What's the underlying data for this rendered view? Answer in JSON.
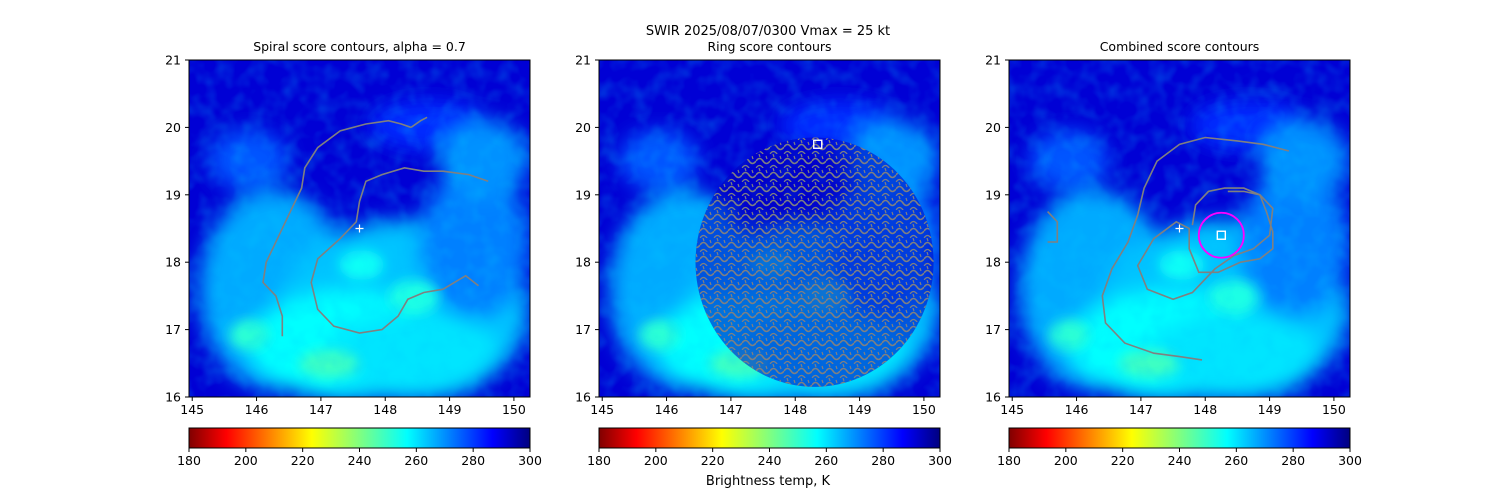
{
  "suptitle_line1": "SWIR  2025/08/07/0300    Vmax = 25 kt",
  "colorbar_label": "Brightness temp, K",
  "chart_data": [
    {
      "type": "heatmap",
      "title": "Spiral score contours, alpha =  0.7",
      "xlim": [
        144.95,
        150.25
      ],
      "ylim": [
        16,
        21
      ],
      "xticks": [
        145,
        146,
        147,
        148,
        149,
        150
      ],
      "yticks": [
        16,
        17,
        18,
        19,
        20,
        21
      ],
      "colorbar": {
        "cmap": "jet_r",
        "range": [
          180,
          300
        ],
        "ticks": [
          180,
          200,
          220,
          240,
          260,
          280,
          300
        ]
      },
      "markers": [
        {
          "type": "plus",
          "color": "#ffffff",
          "lon": 147.6,
          "lat": 18.5
        }
      ],
      "contours": [
        {
          "color": "#808080",
          "points": [
            [
              146.4,
              16.9
            ],
            [
              146.4,
              17.2
            ],
            [
              146.3,
              17.5
            ],
            [
              146.1,
              17.7
            ],
            [
              146.15,
              18.0
            ],
            [
              146.35,
              18.4
            ],
            [
              146.55,
              18.8
            ],
            [
              146.7,
              19.1
            ],
            [
              146.75,
              19.4
            ],
            [
              146.95,
              19.7
            ],
            [
              147.3,
              19.95
            ],
            [
              147.7,
              20.05
            ],
            [
              148.05,
              20.1
            ],
            [
              148.25,
              20.05
            ],
            [
              148.4,
              20.0
            ]
          ]
        },
        {
          "color": "#808080",
          "points": [
            [
              148.4,
              20.0
            ],
            [
              148.55,
              20.1
            ],
            [
              148.65,
              20.15
            ]
          ]
        },
        {
          "color": "#808080",
          "points": [
            [
              149.6,
              19.2
            ],
            [
              149.3,
              19.3
            ],
            [
              148.9,
              19.35
            ],
            [
              148.6,
              19.35
            ],
            [
              148.3,
              19.4
            ],
            [
              147.95,
              19.3
            ],
            [
              147.7,
              19.2
            ],
            [
              147.6,
              18.9
            ],
            [
              147.55,
              18.6
            ],
            [
              147.3,
              18.35
            ],
            [
              146.95,
              18.05
            ],
            [
              146.85,
              17.7
            ],
            [
              146.95,
              17.3
            ],
            [
              147.2,
              17.05
            ],
            [
              147.6,
              16.95
            ],
            [
              147.95,
              17.0
            ],
            [
              148.2,
              17.2
            ],
            [
              148.35,
              17.45
            ],
            [
              148.6,
              17.55
            ],
            [
              148.9,
              17.6
            ],
            [
              149.25,
              17.8
            ],
            [
              149.45,
              17.65
            ]
          ]
        }
      ]
    },
    {
      "type": "heatmap",
      "title": "Ring score contours",
      "xlim": [
        144.95,
        150.25
      ],
      "ylim": [
        16,
        21
      ],
      "xticks": [
        145,
        146,
        147,
        148,
        149,
        150
      ],
      "yticks": [
        16,
        17,
        18,
        19,
        20,
        21
      ],
      "colorbar": {
        "cmap": "jet_r",
        "range": [
          180,
          300
        ],
        "ticks": [
          180,
          200,
          220,
          240,
          260,
          280,
          300
        ]
      },
      "markers": [
        {
          "type": "square",
          "color": "#ffffff",
          "lon": 148.35,
          "lat": 19.75
        }
      ],
      "ring_region": {
        "lon": 148.3,
        "lat": 18.0,
        "radius_deg": 1.85
      },
      "contours": []
    },
    {
      "type": "heatmap",
      "title": "Combined score contours",
      "xlim": [
        144.95,
        150.25
      ],
      "ylim": [
        16,
        21
      ],
      "xticks": [
        145,
        146,
        147,
        148,
        149,
        150
      ],
      "yticks": [
        16,
        17,
        18,
        19,
        20,
        21
      ],
      "colorbar": {
        "cmap": "jet_r",
        "range": [
          180,
          300
        ],
        "ticks": [
          180,
          200,
          220,
          240,
          260,
          280,
          300
        ]
      },
      "markers": [
        {
          "type": "plus",
          "color": "#ffffff",
          "lon": 147.6,
          "lat": 18.5
        },
        {
          "type": "square",
          "color": "#ffffff",
          "lon": 148.25,
          "lat": 18.4
        },
        {
          "type": "circle",
          "color": "#ff00ff",
          "lon": 148.25,
          "lat": 18.4,
          "radius_deg": 0.35
        }
      ],
      "contours": [
        {
          "color": "#808080",
          "points": [
            [
              149.3,
              19.65
            ],
            [
              148.9,
              19.75
            ],
            [
              148.5,
              19.8
            ],
            [
              148.0,
              19.85
            ],
            [
              147.6,
              19.75
            ],
            [
              147.25,
              19.5
            ],
            [
              147.05,
              19.1
            ],
            [
              146.95,
              18.7
            ],
            [
              146.8,
              18.3
            ],
            [
              146.55,
              17.9
            ],
            [
              146.4,
              17.5
            ],
            [
              146.45,
              17.1
            ],
            [
              146.75,
              16.8
            ],
            [
              147.2,
              16.65
            ],
            [
              147.6,
              16.6
            ],
            [
              147.95,
              16.55
            ]
          ]
        },
        {
          "color": "#808080",
          "points": [
            [
              145.55,
              18.3
            ],
            [
              145.7,
              18.3
            ],
            [
              145.7,
              18.6
            ],
            [
              145.55,
              18.75
            ]
          ]
        },
        {
          "color": "#808080",
          "points": [
            [
              148.35,
              19.05
            ],
            [
              148.6,
              19.05
            ],
            [
              148.85,
              19.0
            ],
            [
              148.95,
              18.75
            ],
            [
              149.05,
              18.45
            ],
            [
              149.05,
              18.2
            ],
            [
              148.85,
              18.05
            ],
            [
              148.55,
              18.0
            ],
            [
              148.2,
              17.85
            ],
            [
              147.9,
              17.85
            ],
            [
              147.75,
              18.2
            ],
            [
              147.75,
              18.5
            ],
            [
              147.55,
              18.6
            ],
            [
              147.2,
              18.35
            ],
            [
              146.95,
              17.95
            ],
            [
              147.1,
              17.6
            ],
            [
              147.5,
              17.45
            ],
            [
              147.8,
              17.55
            ],
            [
              148.15,
              17.9
            ],
            [
              148.45,
              18.1
            ],
            [
              148.75,
              18.2
            ],
            [
              149.0,
              18.4
            ],
            [
              149.05,
              18.8
            ],
            [
              148.85,
              19.0
            ],
            [
              148.6,
              19.1
            ],
            [
              148.3,
              19.1
            ],
            [
              148.05,
              19.05
            ],
            [
              147.85,
              18.85
            ],
            [
              147.8,
              18.55
            ]
          ]
        }
      ]
    }
  ],
  "colors": {
    "contour": "#808080",
    "ring": "#ff00ff",
    "marker": "#ffffff"
  }
}
